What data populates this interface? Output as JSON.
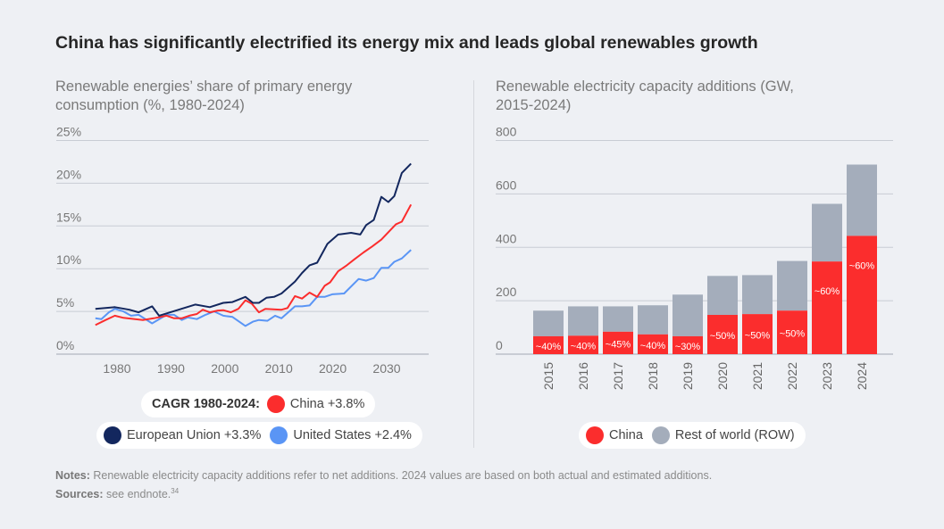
{
  "title": "China has significantly electrified its energy mix and leads global renewables growth",
  "colors": {
    "china": "#fb2d2d",
    "eu": "#13275e",
    "us": "#5a95f5",
    "row": "#a4adbb",
    "grid": "#c8ccd4"
  },
  "chart_data": [
    {
      "type": "line",
      "title": "Renewable energies’ share of primary energy consumption (%, 1980-2024)",
      "ylim": [
        0,
        25
      ],
      "y_ticks": [
        "0%",
        "5%",
        "10%",
        "15%",
        "20%",
        "25%"
      ],
      "y_tick_values": [
        0,
        5,
        10,
        15,
        20,
        25
      ],
      "x_ticks": [
        "1980",
        "1990",
        "2000",
        "2010",
        "2020",
        "2030"
      ],
      "x_tick_values": [
        1980,
        1990,
        2000,
        2010,
        2020,
        2030
      ],
      "grid": true,
      "legend_placement": "bottom",
      "legend_heading": "CAGR 1980-2024:",
      "series": [
        {
          "key": "china",
          "name": "China +3.8%",
          "x": [
            1976,
            1977.9,
            1979.6,
            1981.2,
            1984.8,
            1986.8,
            1989.2,
            1990.6,
            1992,
            1993.4,
            1994.8,
            1995.9,
            1997.2,
            1998.7,
            1999.7,
            2001.1,
            2002.5,
            2003.8,
            2005,
            2006.3,
            2007.5,
            2010.5,
            2011.6,
            2013,
            2014.3,
            2015.7,
            2017.1,
            2018.5,
            2019.5,
            2021,
            2022.6,
            2024,
            2025.7,
            2027.3,
            2029,
            2031.7,
            2032.8,
            2034.5
          ],
          "y": [
            3.4,
            4.0,
            4.5,
            4.25,
            4.0,
            4.2,
            4.5,
            4.2,
            4.2,
            4.5,
            4.7,
            5.2,
            4.9,
            5.1,
            5.15,
            4.9,
            5.3,
            6.3,
            5.9,
            4.9,
            5.3,
            5.2,
            5.4,
            6.8,
            6.5,
            7.2,
            6.7,
            8.0,
            8.4,
            9.7,
            10.4,
            11.1,
            11.9,
            12.6,
            13.4,
            15.2,
            15.5,
            17.5
          ]
        },
        {
          "key": "eu",
          "name": "European Union +3.3%",
          "x": [
            1976,
            1979.6,
            1982.3,
            1984,
            1986.5,
            1987.8,
            1994.5,
            1997.2,
            1999.7,
            2001.4,
            2003.8,
            2005.2,
            2006.3,
            2007.7,
            2009.1,
            2010.5,
            2013,
            2014.3,
            2015.7,
            2017.1,
            2019,
            2021,
            2023.4,
            2025.1,
            2026.2,
            2027.6,
            2029,
            2030.3,
            2031.4,
            2032.8,
            2034.5
          ],
          "y": [
            5.3,
            5.5,
            5.2,
            4.9,
            5.6,
            4.5,
            5.8,
            5.5,
            6.0,
            6.1,
            6.7,
            6.0,
            6.0,
            6.6,
            6.7,
            7.1,
            8.5,
            9.5,
            10.4,
            10.7,
            12.9,
            14.0,
            14.2,
            14.0,
            15.1,
            15.7,
            18.4,
            17.8,
            18.5,
            21.2,
            22.3
          ]
        },
        {
          "key": "us",
          "name": "United States +2.4%",
          "x": [
            1976,
            1977.1,
            1978.5,
            1979.6,
            1981.2,
            1982.6,
            1984,
            1986.5,
            1989.2,
            1990.6,
            1992,
            1993.1,
            1994.8,
            1996.4,
            1998,
            1999.7,
            2001.4,
            2003.8,
            2005.2,
            2006.3,
            2007.9,
            2009.3,
            2010.5,
            2013,
            2014.3,
            2015.7,
            2017.1,
            2018.5,
            2019.9,
            2022.1,
            2024.8,
            2026.2,
            2027.6,
            2029,
            2030.3,
            2031.4,
            2032.8,
            2034.5
          ],
          "y": [
            4.2,
            4.1,
            4.9,
            5.3,
            5.0,
            4.5,
            4.6,
            3.6,
            4.6,
            4.6,
            4.0,
            4.3,
            4.1,
            4.6,
            5.0,
            4.5,
            4.35,
            3.3,
            3.8,
            4.0,
            3.9,
            4.5,
            4.2,
            5.6,
            5.6,
            5.7,
            6.7,
            6.7,
            7.0,
            7.1,
            8.8,
            8.6,
            8.9,
            10.1,
            10.1,
            10.8,
            11.2,
            12.2
          ]
        }
      ]
    },
    {
      "type": "bar",
      "stacked": true,
      "title": "Renewable electricity capacity additions (GW, 2015-2024)",
      "ylim": [
        0,
        800
      ],
      "y_ticks": [
        "0",
        "200",
        "400",
        "600",
        "800"
      ],
      "y_tick_values": [
        0,
        200,
        400,
        600,
        800
      ],
      "grid": true,
      "legend_placement": "bottom",
      "categories": [
        "2015",
        "2016",
        "2017",
        "2018",
        "2019",
        "2020",
        "2021",
        "2022",
        "2023",
        "2024"
      ],
      "series": [
        {
          "key": "china",
          "name": "China",
          "values": [
            67,
            69,
            84,
            74,
            67,
            147,
            150,
            163,
            347,
            443
          ]
        },
        {
          "key": "row",
          "name": "Rest of world (ROW)",
          "values": [
            96,
            110,
            95,
            109,
            156,
            146,
            146,
            186,
            216,
            267
          ]
        }
      ],
      "data_labels": [
        "~40%",
        "~40%",
        "~45%",
        "~40%",
        "~30%",
        "~50%",
        "~50%",
        "~50%",
        "~60%",
        "~60%"
      ]
    }
  ],
  "notes": {
    "notes_label": "Notes:",
    "notes_text": " Renewable electricity capacity additions refer to net additions. 2024 values are based on both actual and estimated additions.",
    "sources_label": "Sources:",
    "sources_text": " see endnote.",
    "endnote_ref": "34"
  }
}
